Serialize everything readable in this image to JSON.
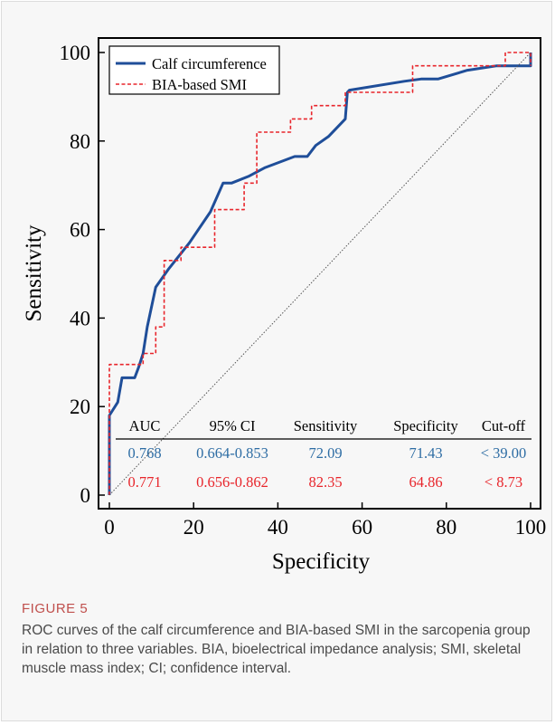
{
  "figure": {
    "label": "FIGURE 5",
    "caption": "ROC curves of the calf circumference and BIA-based SMI in the sarcopenia group in relation to three variables. BIA, bioelectrical impedance analysis; SMI, skeletal muscle mass index; CI; confidence interval."
  },
  "colors": {
    "calf": "#1f4e99",
    "bia": "#e8262c",
    "calf_text": "#2e6da4",
    "bia_text": "#e8262c",
    "reference": "#555555"
  },
  "chart_data": {
    "type": "line",
    "xlabel": "Specificity",
    "ylabel": "Sensitivity",
    "xlim": [
      0,
      100
    ],
    "ylim": [
      0,
      100
    ],
    "xticks": [
      0,
      20,
      40,
      60,
      80,
      100
    ],
    "yticks": [
      0,
      20,
      40,
      60,
      80,
      100
    ],
    "legend_position": "top-left",
    "grid": false,
    "series": [
      {
        "name": "Calf circumference",
        "style": "solid",
        "x": [
          0,
          0,
          2,
          3,
          5,
          6,
          7,
          8,
          9,
          11,
          14,
          19,
          24,
          27,
          29,
          33,
          37,
          44,
          47,
          49,
          52,
          56,
          56.5,
          57,
          70,
          74,
          78,
          85,
          92,
          97,
          100,
          100
        ],
        "y": [
          0,
          18,
          21,
          26.5,
          26.5,
          26.5,
          29,
          32,
          38,
          47,
          51,
          57,
          64,
          70.5,
          70.5,
          72,
          74,
          76.5,
          76.5,
          79,
          81,
          85,
          91,
          91.5,
          93.5,
          94,
          94,
          96,
          97,
          97,
          97,
          100
        ]
      },
      {
        "name": "BIA-based SMI",
        "style": "dashed",
        "x": [
          0,
          0,
          8,
          8,
          11,
          11,
          13,
          13,
          17,
          17,
          25,
          25,
          32,
          32,
          35,
          35,
          43,
          43,
          48,
          48,
          56,
          56,
          72,
          72,
          94,
          94,
          100,
          100
        ],
        "y": [
          0,
          29.5,
          29.5,
          32,
          32,
          38,
          38,
          53,
          53,
          56,
          56,
          64.5,
          64.5,
          70.5,
          70.5,
          82,
          82,
          85,
          85,
          88,
          88,
          91,
          91,
          97,
          97,
          100,
          100,
          97
        ]
      },
      {
        "name": "",
        "style": "dotted",
        "x": [
          0,
          100
        ],
        "y": [
          0,
          100
        ]
      }
    ],
    "table": {
      "headers": [
        "AUC",
        "95% CI",
        "Sensitivity",
        "Specificity",
        "Cut-off"
      ],
      "rows": [
        [
          "0.768",
          "0.664-0.853",
          "72.09",
          "71.43",
          "< 39.00"
        ],
        [
          "0.771",
          "0.656-0.862",
          "82.35",
          "64.86",
          "< 8.73"
        ]
      ]
    }
  }
}
